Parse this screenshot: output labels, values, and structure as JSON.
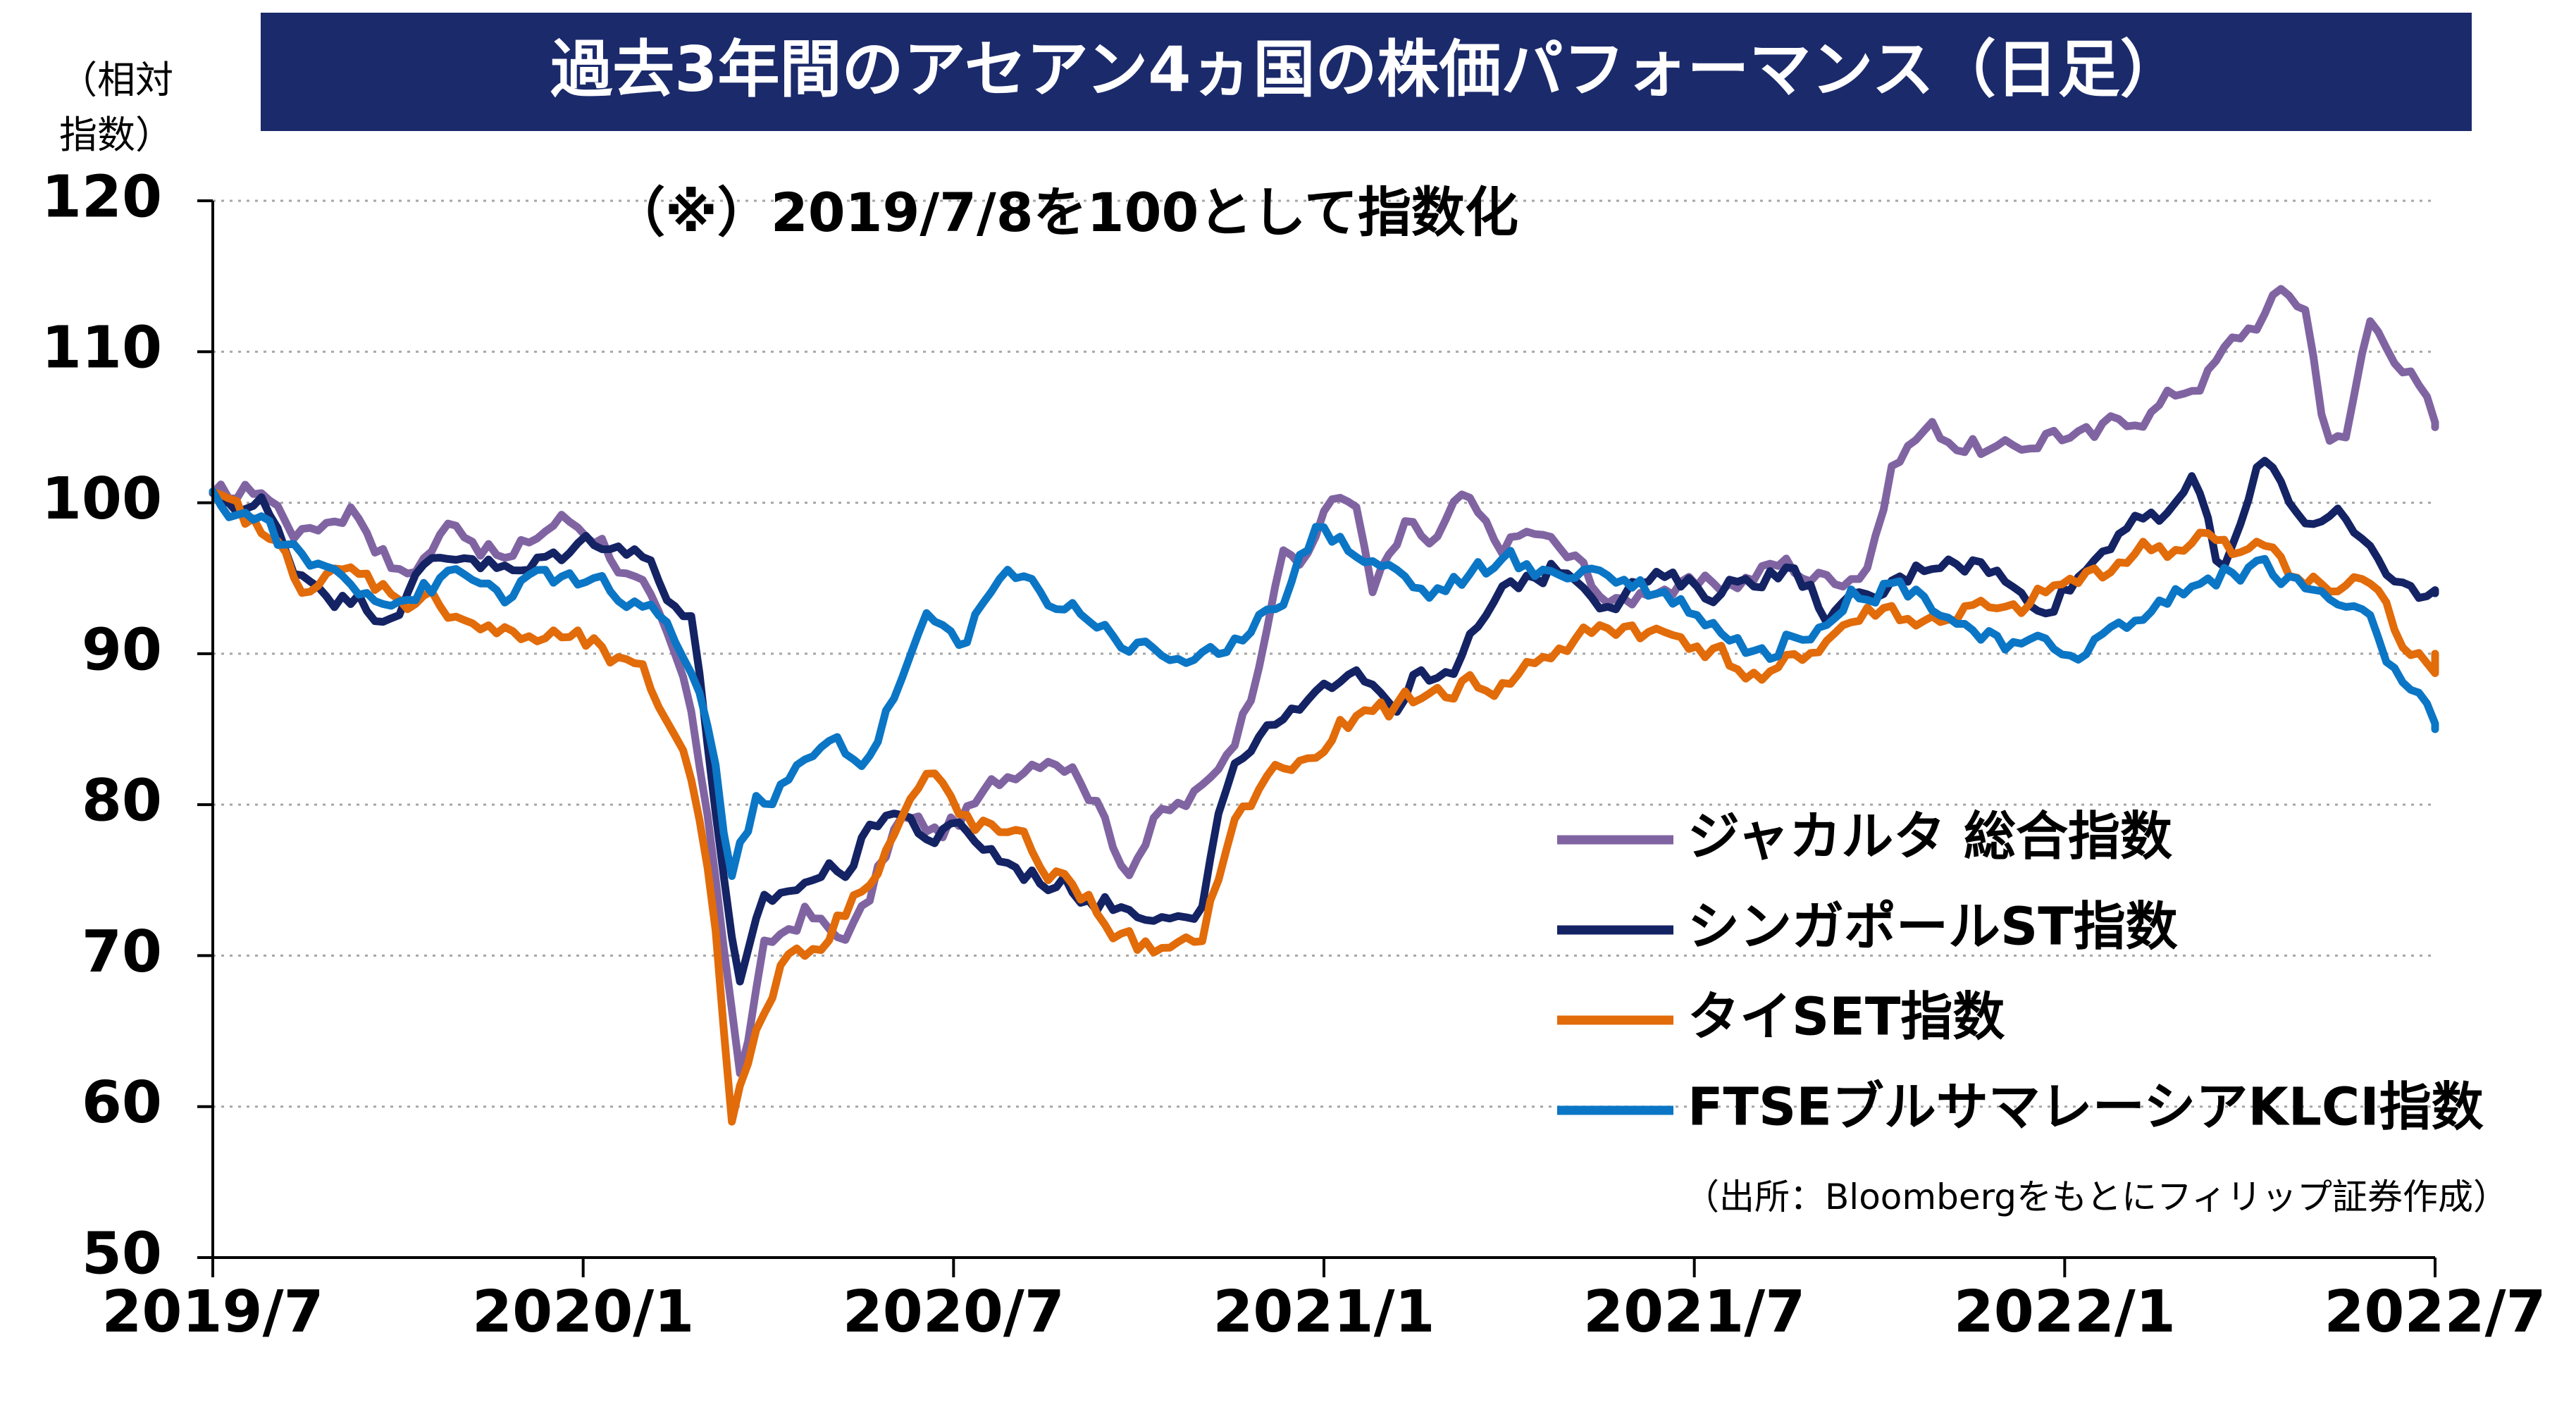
{
  "title": "過去3年間のアセアン4ヵ国の株価パフォーマンス（日足）",
  "y_unit_label_line1": "（相対",
  "y_unit_label_line2": "指数）",
  "note": "（※）2019/7/8を100として指数化",
  "source": "（出所：Bloombergをもとにフィリップ証券作成）",
  "colors": {
    "title_bg": "#1b2a6b",
    "jakarta": "#8064a2",
    "singapore": "#142364",
    "thai": "#e26b0a",
    "malaysia": "#0b76c5",
    "axis": "#000000",
    "grid": "#a6a6a6"
  },
  "chart_data": {
    "type": "line",
    "x_ticks": [
      "2019/7",
      "2020/1",
      "2020/7",
      "2021/1",
      "2021/7",
      "2022/1",
      "2022/7"
    ],
    "y_ticks": [
      "50",
      "60",
      "70",
      "80",
      "90",
      "100",
      "110",
      "120"
    ],
    "ylim": [
      50,
      120
    ],
    "xlim": [
      "2019-07-08",
      "2022-07-08"
    ],
    "grid": "horizontal dotted",
    "legend_position": "bottom-right",
    "series": [
      {
        "name": "ジャカルタ 総合指数",
        "color": "#8064a2",
        "points": [
          [
            "2019-07-08",
            100
          ],
          [
            "2019-08-01",
            101
          ],
          [
            "2019-08-20",
            98
          ],
          [
            "2019-09-15",
            100
          ],
          [
            "2019-10-10",
            95
          ],
          [
            "2019-11-05",
            99
          ],
          [
            "2019-12-01",
            96
          ],
          [
            "2019-12-25",
            99
          ],
          [
            "2020-01-15",
            98
          ],
          [
            "2020-02-05",
            94
          ],
          [
            "2020-02-25",
            88
          ],
          [
            "2020-03-10",
            78
          ],
          [
            "2020-03-24",
            62
          ],
          [
            "2020-04-05",
            70
          ],
          [
            "2020-04-25",
            73
          ],
          [
            "2020-05-10",
            71
          ],
          [
            "2020-05-25",
            73
          ],
          [
            "2020-06-10",
            79
          ],
          [
            "2020-06-30",
            78
          ],
          [
            "2020-07-20",
            80
          ],
          [
            "2020-08-10",
            83
          ],
          [
            "2020-08-25",
            84
          ],
          [
            "2020-09-10",
            82
          ],
          [
            "2020-09-30",
            76
          ],
          [
            "2020-10-15",
            79
          ],
          [
            "2020-10-30",
            80
          ],
          [
            "2020-11-10",
            81
          ],
          [
            "2020-11-30",
            87
          ],
          [
            "2020-12-15",
            97
          ],
          [
            "2020-12-25",
            96
          ],
          [
            "2021-01-10",
            100
          ],
          [
            "2021-01-20",
            101
          ],
          [
            "2021-01-30",
            94
          ],
          [
            "2021-02-15",
            98
          ],
          [
            "2021-03-01",
            97
          ],
          [
            "2021-03-15",
            100
          ],
          [
            "2021-04-01",
            97
          ],
          [
            "2021-04-20",
            98
          ],
          [
            "2021-05-10",
            96
          ],
          [
            "2021-06-01",
            93
          ],
          [
            "2021-06-20",
            95
          ],
          [
            "2021-07-10",
            94
          ],
          [
            "2021-08-01",
            95
          ],
          [
            "2021-08-20",
            96
          ],
          [
            "2021-09-10",
            95
          ],
          [
            "2021-09-30",
            96
          ],
          [
            "2021-10-15",
            103
          ],
          [
            "2021-10-30",
            105
          ],
          [
            "2021-11-20",
            104
          ],
          [
            "2021-12-10",
            103
          ],
          [
            "2021-12-31",
            105
          ],
          [
            "2022-01-20",
            104
          ],
          [
            "2022-02-10",
            106
          ],
          [
            "2022-02-28",
            107
          ],
          [
            "2022-03-20",
            109
          ],
          [
            "2022-04-10",
            112
          ],
          [
            "2022-04-25",
            114
          ],
          [
            "2022-05-05",
            113
          ],
          [
            "2022-05-15",
            105
          ],
          [
            "2022-05-25",
            104
          ],
          [
            "2022-06-05",
            112
          ],
          [
            "2022-06-15",
            111
          ],
          [
            "2022-06-25",
            109
          ],
          [
            "2022-07-08",
            105
          ]
        ]
      },
      {
        "name": "シンガポールST指数",
        "color": "#142364",
        "points": [
          [
            "2019-07-08",
            100
          ],
          [
            "2019-08-01",
            100
          ],
          [
            "2019-08-15",
            96
          ],
          [
            "2019-09-10",
            94
          ],
          [
            "2019-10-01",
            93
          ],
          [
            "2019-10-25",
            96
          ],
          [
            "2019-11-10",
            97
          ],
          [
            "2019-12-05",
            95
          ],
          [
            "2020-01-02",
            97
          ],
          [
            "2020-01-20",
            98
          ],
          [
            "2020-02-10",
            96
          ],
          [
            "2020-03-01",
            92
          ],
          [
            "2020-03-12",
            80
          ],
          [
            "2020-03-23",
            67
          ],
          [
            "2020-04-05",
            73
          ],
          [
            "2020-04-25",
            75
          ],
          [
            "2020-05-15",
            76
          ],
          [
            "2020-06-05",
            80
          ],
          [
            "2020-06-25",
            78
          ],
          [
            "2020-07-15",
            78
          ],
          [
            "2020-08-05",
            76
          ],
          [
            "2020-08-25",
            75
          ],
          [
            "2020-09-15",
            74
          ],
          [
            "2020-10-05",
            73
          ],
          [
            "2020-10-25",
            74
          ],
          [
            "2020-11-05",
            72
          ],
          [
            "2020-11-15",
            79
          ],
          [
            "2020-12-01",
            84
          ],
          [
            "2020-12-15",
            85
          ],
          [
            "2021-01-01",
            86
          ],
          [
            "2021-01-20",
            90
          ],
          [
            "2021-02-10",
            87
          ],
          [
            "2021-02-25",
            89
          ],
          [
            "2021-03-10",
            88
          ],
          [
            "2021-03-25",
            92
          ],
          [
            "2021-04-15",
            95
          ],
          [
            "2021-05-05",
            96
          ],
          [
            "2021-05-25",
            94
          ],
          [
            "2021-06-15",
            95
          ],
          [
            "2021-07-10",
            94
          ],
          [
            "2021-08-01",
            95
          ],
          [
            "2021-08-20",
            96
          ],
          [
            "2021-09-10",
            93
          ],
          [
            "2021-09-30",
            93
          ],
          [
            "2021-10-20",
            95
          ],
          [
            "2021-11-10",
            97
          ],
          [
            "2021-12-01",
            96
          ],
          [
            "2021-12-20",
            93
          ],
          [
            "2022-01-10",
            95
          ],
          [
            "2022-01-25",
            97
          ],
          [
            "2022-02-10",
            100
          ],
          [
            "2022-02-25",
            98
          ],
          [
            "2022-03-10",
            102
          ],
          [
            "2022-03-25",
            95
          ],
          [
            "2022-04-15",
            103
          ],
          [
            "2022-05-05",
            99
          ],
          [
            "2022-05-20",
            100
          ],
          [
            "2022-06-05",
            96
          ],
          [
            "2022-06-20",
            94
          ],
          [
            "2022-07-08",
            94
          ]
        ]
      },
      {
        "name": "タイSET指数",
        "color": "#e26b0a",
        "points": [
          [
            "2019-07-08",
            100
          ],
          [
            "2019-08-01",
            98
          ],
          [
            "2019-08-20",
            95
          ],
          [
            "2019-09-15",
            95
          ],
          [
            "2019-10-10",
            94
          ],
          [
            "2019-11-05",
            93
          ],
          [
            "2019-12-01",
            91
          ],
          [
            "2019-12-25",
            91
          ],
          [
            "2020-01-15",
            90
          ],
          [
            "2020-02-05",
            88
          ],
          [
            "2020-02-25",
            84
          ],
          [
            "2020-03-10",
            75
          ],
          [
            "2020-03-20",
            60
          ],
          [
            "2020-03-31",
            64
          ],
          [
            "2020-04-15",
            70
          ],
          [
            "2020-05-01",
            71
          ],
          [
            "2020-05-20",
            74
          ],
          [
            "2020-06-10",
            79
          ],
          [
            "2020-06-25",
            82
          ],
          [
            "2020-07-10",
            79
          ],
          [
            "2020-07-31",
            78
          ],
          [
            "2020-08-20",
            76
          ],
          [
            "2020-09-10",
            74
          ],
          [
            "2020-09-30",
            71
          ],
          [
            "2020-10-20",
            70
          ],
          [
            "2020-11-05",
            70
          ],
          [
            "2020-11-20",
            78
          ],
          [
            "2020-12-10",
            82
          ],
          [
            "2020-12-31",
            83
          ],
          [
            "2021-01-15",
            85
          ],
          [
            "2021-02-05",
            86
          ],
          [
            "2021-02-25",
            87
          ],
          [
            "2021-03-15",
            88
          ],
          [
            "2021-04-05",
            88
          ],
          [
            "2021-04-25",
            90
          ],
          [
            "2021-05-15",
            91
          ],
          [
            "2021-06-05",
            92
          ],
          [
            "2021-06-25",
            91
          ],
          [
            "2021-07-10",
            91
          ],
          [
            "2021-07-30",
            89
          ],
          [
            "2021-08-15",
            88
          ],
          [
            "2021-09-01",
            90
          ],
          [
            "2021-09-20",
            92
          ],
          [
            "2021-10-10",
            93
          ],
          [
            "2021-10-30",
            92
          ],
          [
            "2021-11-20",
            93
          ],
          [
            "2021-12-10",
            92
          ],
          [
            "2021-12-31",
            94
          ],
          [
            "2022-01-20",
            95
          ],
          [
            "2022-02-10",
            97
          ],
          [
            "2022-03-01",
            97
          ],
          [
            "2022-03-15",
            98
          ],
          [
            "2022-04-01",
            96
          ],
          [
            "2022-04-20",
            97
          ],
          [
            "2022-05-05",
            95
          ],
          [
            "2022-05-20",
            94
          ],
          [
            "2022-06-05",
            95
          ],
          [
            "2022-06-20",
            91
          ],
          [
            "2022-07-08",
            90
          ]
        ]
      },
      {
        "name": "FTSEブルサマレーシアKLCI指数",
        "color": "#0b76c5",
        "points": [
          [
            "2019-07-08",
            100
          ],
          [
            "2019-08-01",
            99
          ],
          [
            "2019-08-20",
            96
          ],
          [
            "2019-09-15",
            95
          ],
          [
            "2019-10-10",
            94
          ],
          [
            "2019-11-05",
            95
          ],
          [
            "2019-12-01",
            94
          ],
          [
            "2019-12-25",
            95
          ],
          [
            "2020-01-15",
            94
          ],
          [
            "2020-02-05",
            93
          ],
          [
            "2020-02-25",
            90
          ],
          [
            "2020-03-10",
            85
          ],
          [
            "2020-03-19",
            75
          ],
          [
            "2020-04-01",
            80
          ],
          [
            "2020-04-20",
            82
          ],
          [
            "2020-05-10",
            84
          ],
          [
            "2020-05-25",
            83
          ],
          [
            "2020-06-10",
            88
          ],
          [
            "2020-06-25",
            92
          ],
          [
            "2020-07-10",
            91
          ],
          [
            "2020-07-31",
            95
          ],
          [
            "2020-08-20",
            94
          ],
          [
            "2020-09-10",
            93
          ],
          [
            "2020-09-30",
            91
          ],
          [
            "2020-10-20",
            90
          ],
          [
            "2020-11-05",
            90
          ],
          [
            "2020-11-20",
            89
          ],
          [
            "2020-12-05",
            93
          ],
          [
            "2020-12-20",
            95
          ],
          [
            "2021-01-05",
            99
          ],
          [
            "2021-01-20",
            97
          ],
          [
            "2021-02-05",
            96
          ],
          [
            "2021-02-25",
            94
          ],
          [
            "2021-03-15",
            95
          ],
          [
            "2021-04-05",
            96
          ],
          [
            "2021-04-25",
            95
          ],
          [
            "2021-05-15",
            96
          ],
          [
            "2021-06-05",
            95
          ],
          [
            "2021-06-25",
            94
          ],
          [
            "2021-07-10",
            93
          ],
          [
            "2021-07-30",
            91
          ],
          [
            "2021-08-15",
            90
          ],
          [
            "2021-09-01",
            92
          ],
          [
            "2021-09-20",
            94
          ],
          [
            "2021-10-10",
            95
          ],
          [
            "2021-10-30",
            94
          ],
          [
            "2021-11-20",
            92
          ],
          [
            "2021-12-10",
            90
          ],
          [
            "2021-12-31",
            90
          ],
          [
            "2022-01-20",
            91
          ],
          [
            "2022-02-10",
            92
          ],
          [
            "2022-03-01",
            94
          ],
          [
            "2022-03-20",
            95
          ],
          [
            "2022-04-10",
            96
          ],
          [
            "2022-04-25",
            95
          ],
          [
            "2022-05-10",
            94
          ],
          [
            "2022-05-25",
            93
          ],
          [
            "2022-06-10",
            91
          ],
          [
            "2022-06-25",
            87
          ],
          [
            "2022-07-08",
            85
          ]
        ]
      }
    ]
  }
}
